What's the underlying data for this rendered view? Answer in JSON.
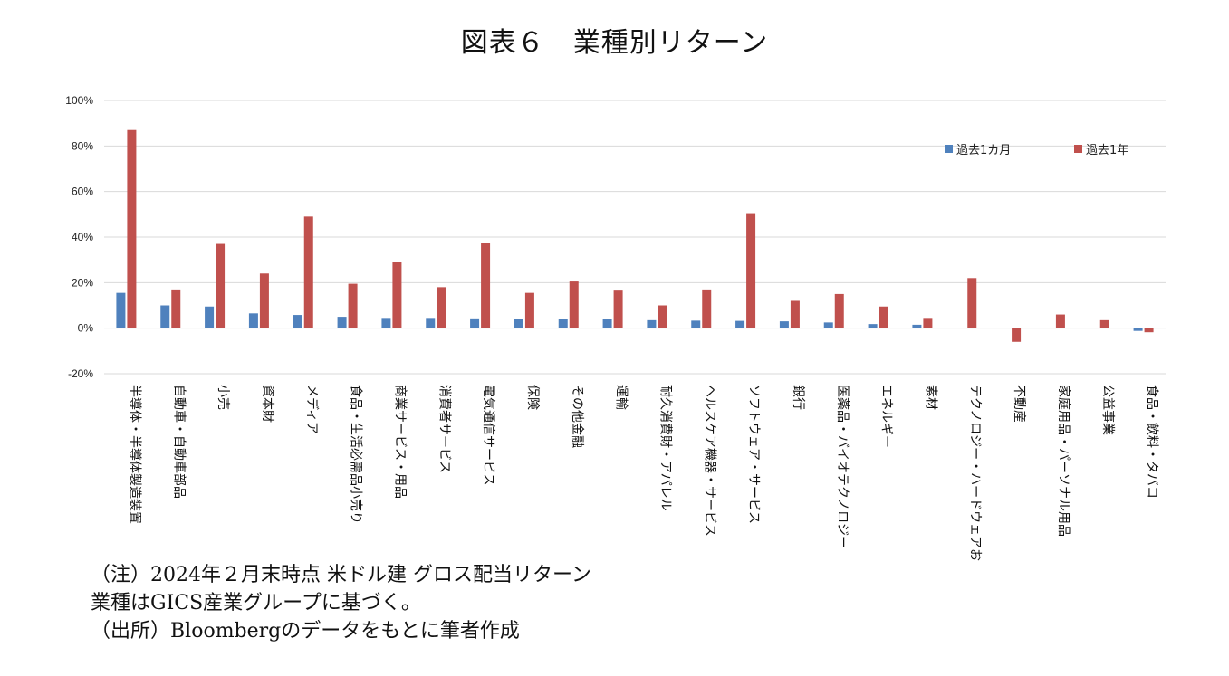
{
  "title": "図表６　業種別リターン",
  "chart_data": {
    "type": "bar",
    "title": "図表６　業種別リターン",
    "ylim": [
      -20,
      100
    ],
    "yticks": [
      -20,
      0,
      20,
      40,
      60,
      80,
      100
    ],
    "ytick_labels": [
      "-20%",
      "0%",
      "20%",
      "40%",
      "60%",
      "80%",
      "100%"
    ],
    "grid": true,
    "legend_position": "top-right",
    "colors": {
      "past_1m": "#4F81BD",
      "past_1y": "#C0504D"
    },
    "categories": [
      "半導体・半導体製造装置",
      "自動車・自動車部品",
      "小売",
      "資本財",
      "メディア",
      "食品・生活必需品小売り",
      "商業サービス・用品",
      "消費者サービス",
      "電気通信サービス",
      "保険",
      "その他金融",
      "運輸",
      "耐久消費財・アパレル",
      "ヘルスケア機器・サービス",
      "ソフトウェア・サービス",
      "銀行",
      "医薬品・バイオテクノロジー",
      "エネルギー",
      "素材",
      "テクノロジー・ハードウェアおよび機器",
      "不動産",
      "家庭用品・パーソナル用品",
      "公益事業",
      "食品・飲料・タバコ"
    ],
    "series": [
      {
        "name": "過去1カ月",
        "values": [
          15.5,
          10,
          9.5,
          6.5,
          5.8,
          5,
          4.5,
          4.5,
          4.3,
          4.2,
          4.1,
          4.0,
          3.5,
          3.3,
          3.2,
          3.0,
          2.5,
          1.8,
          1.5,
          0,
          0,
          0,
          0,
          -1.2
        ]
      },
      {
        "name": "過去1年",
        "values": [
          87,
          17,
          37,
          24,
          49,
          19.5,
          29,
          18,
          37.5,
          15.5,
          20.5,
          16.5,
          10,
          17,
          50.5,
          12,
          15,
          9.5,
          4.5,
          22,
          -6,
          6,
          3.5,
          -1.8
        ]
      }
    ]
  },
  "notes": [
    "（注）2024年２月末時点 米ドル建 グロス配当リターン",
    "業種はGICS産業グループに基づく。",
    "（出所）Bloombergのデータをもとに筆者作成"
  ]
}
